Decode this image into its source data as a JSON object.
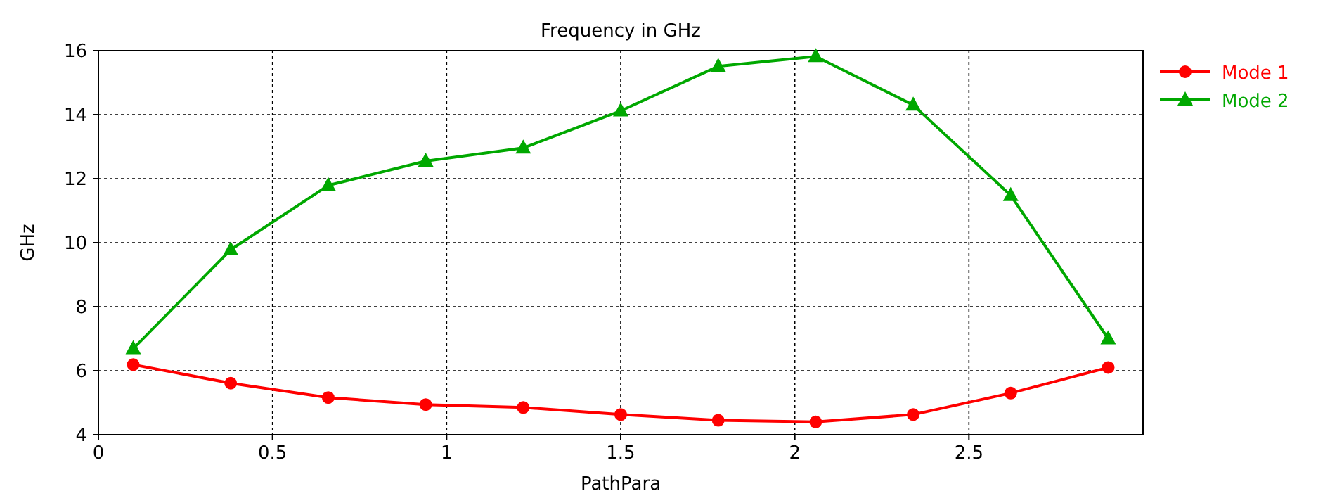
{
  "chart_data": {
    "type": "line",
    "title": "Frequency in GHz",
    "xlabel": "PathPara",
    "ylabel": "GHz",
    "x": [
      0.1,
      0.38,
      0.66,
      0.94,
      1.22,
      1.5,
      1.78,
      2.06,
      2.34,
      2.62,
      2.9
    ],
    "series": [
      {
        "name": "Mode 1",
        "color": "#ff0000",
        "marker": "circle",
        "values": [
          6.19,
          5.61,
          5.16,
          4.94,
          4.85,
          4.63,
          4.45,
          4.4,
          4.63,
          5.3,
          6.1
        ]
      },
      {
        "name": "Mode 2",
        "color": "#00a800",
        "marker": "triangle",
        "values": [
          6.69,
          9.78,
          11.79,
          12.55,
          12.96,
          14.12,
          15.51,
          15.82,
          14.3,
          11.48,
          7.0
        ]
      }
    ],
    "xlim": [
      0,
      3
    ],
    "xticks": [
      0,
      0.5,
      1,
      1.5,
      2,
      2.5
    ],
    "ylim": [
      4,
      16
    ],
    "yticks": [
      4,
      6,
      8,
      10,
      12,
      14,
      16
    ],
    "grid": true,
    "legend": "top right",
    "line_style": "solid"
  }
}
